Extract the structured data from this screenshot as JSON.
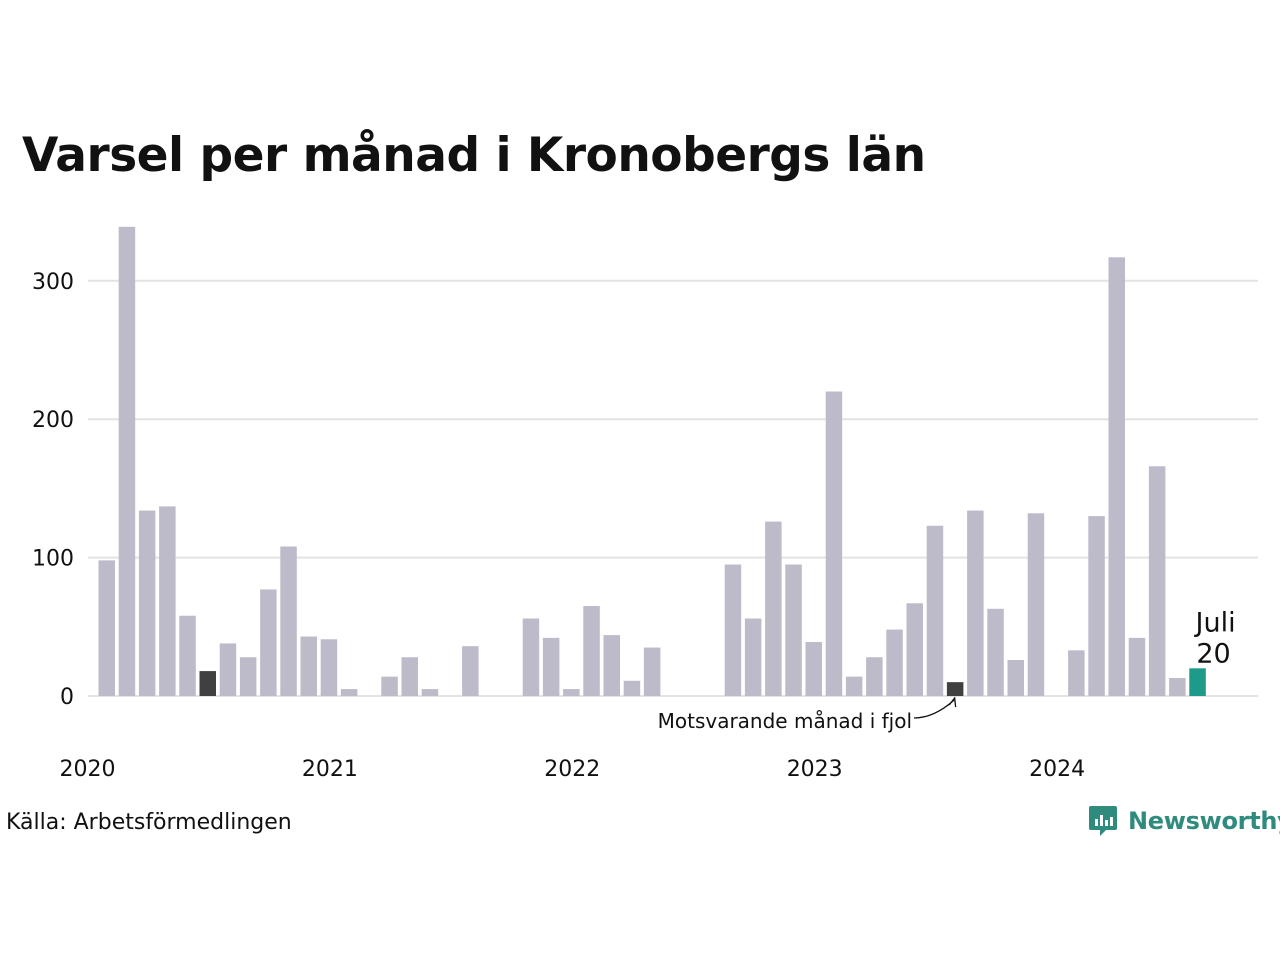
{
  "chart_data": {
    "type": "bar",
    "title": "Varsel per månad i Kronobergs län",
    "ylim": [
      0,
      340
    ],
    "y_ticks": [
      0,
      100,
      200,
      300
    ],
    "x_ticks": [
      "2020",
      "2021",
      "2022",
      "2023",
      "2024"
    ],
    "grid": true,
    "categories": [
      "2020-01",
      "2020-02",
      "2020-03",
      "2020-04",
      "2020-05",
      "2020-06",
      "2020-07",
      "2020-08",
      "2020-09",
      "2020-10",
      "2020-11",
      "2020-12",
      "2021-01",
      "2021-02",
      "2021-03",
      "2021-04",
      "2021-05",
      "2021-06",
      "2021-07",
      "2021-08",
      "2021-09",
      "2021-10",
      "2021-11",
      "2021-12",
      "2022-01",
      "2022-02",
      "2022-03",
      "2022-04",
      "2022-05",
      "2022-06",
      "2022-07",
      "2022-08",
      "2022-09",
      "2022-10",
      "2022-11",
      "2022-12",
      "2023-01",
      "2023-02",
      "2023-03",
      "2023-04",
      "2023-05",
      "2023-06",
      "2023-07",
      "2023-08",
      "2023-09",
      "2023-10",
      "2023-11",
      "2023-12",
      "2024-01",
      "2024-02",
      "2024-03",
      "2024-04",
      "2024-05",
      "2024-06",
      "2024-07"
    ],
    "values": [
      98,
      339,
      134,
      137,
      58,
      18,
      38,
      28,
      77,
      108,
      43,
      41,
      5,
      0,
      14,
      28,
      5,
      0,
      36,
      0,
      0,
      56,
      42,
      5,
      65,
      44,
      11,
      35,
      0,
      0,
      0,
      95,
      56,
      126,
      95,
      39,
      220,
      14,
      28,
      48,
      67,
      123,
      10,
      134,
      63,
      26,
      132,
      0,
      33,
      130,
      317,
      42,
      166,
      13,
      20
    ],
    "highlight": {
      "index": 54,
      "month_label": "Juli",
      "value_label": "20",
      "color": "#1e9a8a"
    },
    "previous_year": {
      "indices": [
        5,
        42
      ],
      "annotation": "Motsvarande månad i fjol",
      "color": "#404040"
    },
    "bar_color": "#bdbbc9",
    "grid_color": "#e3e3e3"
  },
  "source": "Källa: Arbetsförmedlingen",
  "brand": {
    "name": "Newsworthy",
    "color": "#2e8b7e",
    "icon": "newsworthy-logo-icon"
  }
}
